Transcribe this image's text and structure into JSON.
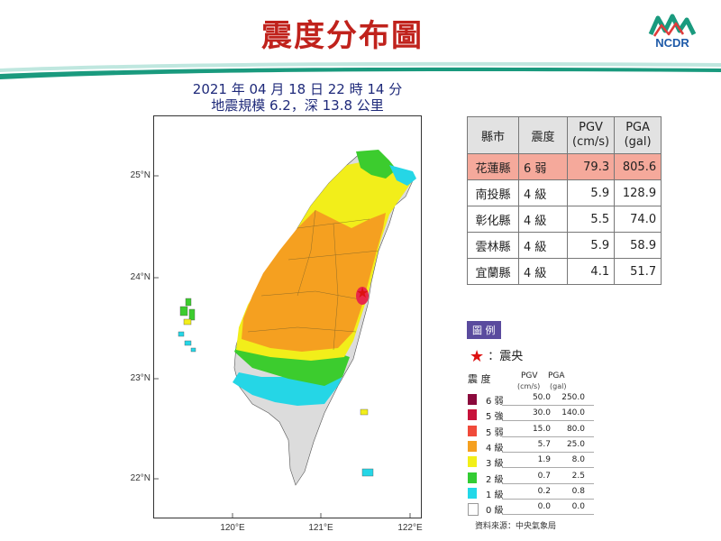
{
  "title": "震度分布圖",
  "logo_text": "NCDR",
  "subtitle": {
    "line1": "2021 年 04 月 18 日 22 時 14 分",
    "line2": "地震規模 6.2，深 13.8 公里"
  },
  "map": {
    "x_ticks": [
      "120°E",
      "121°E",
      "122°E"
    ],
    "y_ticks": [
      "25°N",
      "24°N",
      "23°N",
      "22°N"
    ],
    "epicenter_icon": "star-icon"
  },
  "table": {
    "headers": [
      "縣市",
      "震度",
      "PGV\n(cm/s)",
      "PGA\n(gal)"
    ],
    "rows": [
      {
        "county": "花蓮縣",
        "intensity": "6 弱",
        "pgv": "79.3",
        "pga": "805.6",
        "highlight": true
      },
      {
        "county": "南投縣",
        "intensity": "4 級",
        "pgv": "5.9",
        "pga": "128.9",
        "highlight": false
      },
      {
        "county": "彰化縣",
        "intensity": "4 級",
        "pgv": "5.5",
        "pga": "74.0",
        "highlight": false
      },
      {
        "county": "雲林縣",
        "intensity": "4 級",
        "pgv": "5.9",
        "pga": "58.9",
        "highlight": false
      },
      {
        "county": "宜蘭縣",
        "intensity": "4 級",
        "pgv": "4.1",
        "pga": "51.7",
        "highlight": false
      }
    ]
  },
  "legend": {
    "title": "圖 例",
    "epicenter_label": "：震央",
    "head_intensity": "震 度",
    "head_pgv": "PGV",
    "head_pga": "PGA",
    "unit_pgv": "(cm/s)",
    "unit_pga": "(gal)",
    "levels": [
      {
        "label": "6 弱",
        "pgv": "50.0",
        "pga": "250.0",
        "color": "#8b0a3c"
      },
      {
        "label": "5 強",
        "pgv": "30.0",
        "pga": "140.0",
        "color": "#c7123a"
      },
      {
        "label": "5 弱",
        "pgv": "15.0",
        "pga": "80.0",
        "color": "#f04a3a"
      },
      {
        "label": "4 級",
        "pgv": "5.7",
        "pga": "25.0",
        "color": "#f5a020"
      },
      {
        "label": "3 級",
        "pgv": "1.9",
        "pga": "8.0",
        "color": "#f2ef18"
      },
      {
        "label": "2 級",
        "pgv": "0.7",
        "pga": "2.5",
        "color": "#33cc33"
      },
      {
        "label": "1 級",
        "pgv": "0.2",
        "pga": "0.8",
        "color": "#22d8e8"
      },
      {
        "label": "0 級",
        "pgv": "0.0",
        "pga": "0.0",
        "color": "#ffffff"
      }
    ]
  },
  "source": "資料來源：中央氣象局",
  "colors": {
    "title_red": "#c0221c",
    "accent_green": "#1a9a7e",
    "accent_teal_light": "#bfe7df",
    "navy_text": "#1f2a7a",
    "highlight_row": "#f5a99b",
    "legend_purple": "#5a4b9e"
  }
}
